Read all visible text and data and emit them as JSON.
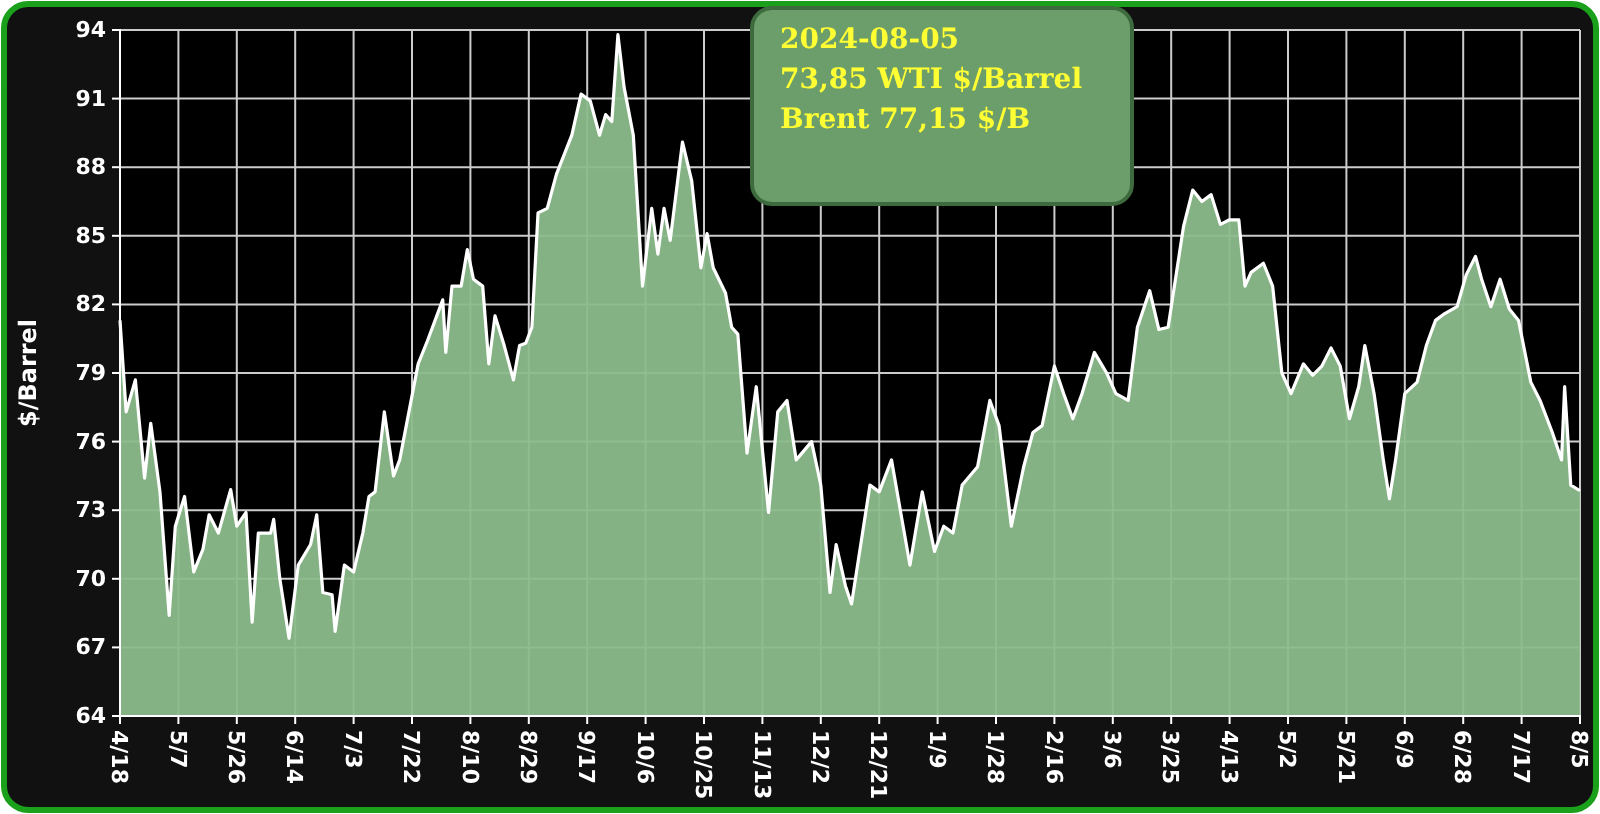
{
  "chart_data": {
    "type": "area",
    "ylabel": "$/Barrel",
    "annotations": [
      "2024-08-05",
      "73,85 WTI $/Barrel",
      "Brent 77,15 $/B"
    ],
    "xlim": [
      "2023-04-18",
      "2024-08-05"
    ],
    "xticks": [
      {
        "value": "2023-04-18",
        "label": "4/18"
      },
      {
        "value": "2023-05-07",
        "label": "5/7"
      },
      {
        "value": "2023-05-26",
        "label": "5/26"
      },
      {
        "value": "2023-06-14",
        "label": "6/14"
      },
      {
        "value": "2023-07-03",
        "label": "7/3"
      },
      {
        "value": "2023-07-22",
        "label": "7/22"
      },
      {
        "value": "2023-08-10",
        "label": "8/10"
      },
      {
        "value": "2023-08-29",
        "label": "8/29"
      },
      {
        "value": "2023-09-17",
        "label": "9/17"
      },
      {
        "value": "2023-10-06",
        "label": "10/6"
      },
      {
        "value": "2023-10-25",
        "label": "10/25"
      },
      {
        "value": "2023-11-13",
        "label": "11/13"
      },
      {
        "value": "2023-12-02",
        "label": "12/2"
      },
      {
        "value": "2023-12-21",
        "label": "12/21"
      },
      {
        "value": "2024-01-09",
        "label": "1/9"
      },
      {
        "value": "2024-01-28",
        "label": "1/28"
      },
      {
        "value": "2024-02-16",
        "label": "2/16"
      },
      {
        "value": "2024-03-06",
        "label": "3/6"
      },
      {
        "value": "2024-03-25",
        "label": "3/25"
      },
      {
        "value": "2024-04-13",
        "label": "4/13"
      },
      {
        "value": "2024-05-02",
        "label": "5/2"
      },
      {
        "value": "2024-05-21",
        "label": "5/21"
      },
      {
        "value": "2024-06-09",
        "label": "6/9"
      },
      {
        "value": "2024-06-28",
        "label": "6/28"
      },
      {
        "value": "2024-07-17",
        "label": "7/17"
      },
      {
        "value": "2024-08-05",
        "label": "8/5"
      }
    ],
    "ylim": [
      64,
      94
    ],
    "yticks": [
      64,
      67,
      70,
      73,
      76,
      79,
      82,
      85,
      88,
      91,
      94
    ],
    "grid": true,
    "x": [
      "2023-04-18",
      "2023-04-20",
      "2023-04-23",
      "2023-04-26",
      "2023-04-28",
      "2023-05-01",
      "2023-05-04",
      "2023-05-06",
      "2023-05-09",
      "2023-05-12",
      "2023-05-15",
      "2023-05-17",
      "2023-05-20",
      "2023-05-24",
      "2023-05-26",
      "2023-05-29",
      "2023-05-31",
      "2023-06-02",
      "2023-06-06",
      "2023-06-07",
      "2023-06-09",
      "2023-06-12",
      "2023-06-15",
      "2023-06-19",
      "2023-06-21",
      "2023-06-23",
      "2023-06-26",
      "2023-06-27",
      "2023-06-30",
      "2023-07-03",
      "2023-07-06",
      "2023-07-08",
      "2023-07-10",
      "2023-07-13",
      "2023-07-16",
      "2023-07-18",
      "2023-07-24",
      "2023-07-27",
      "2023-08-01",
      "2023-08-02",
      "2023-08-04",
      "2023-08-07",
      "2023-08-09",
      "2023-08-11",
      "2023-08-14",
      "2023-08-16",
      "2023-08-18",
      "2023-08-21",
      "2023-08-24",
      "2023-08-26",
      "2023-08-28",
      "2023-08-30",
      "2023-09-01",
      "2023-09-04",
      "2023-09-07",
      "2023-09-12",
      "2023-09-15",
      "2023-09-18",
      "2023-09-21",
      "2023-09-23",
      "2023-09-25",
      "2023-09-27",
      "2023-09-29",
      "2023-10-02",
      "2023-10-05",
      "2023-10-08",
      "2023-10-10",
      "2023-10-12",
      "2023-10-14",
      "2023-10-18",
      "2023-10-21",
      "2023-10-24",
      "2023-10-26",
      "2023-10-28",
      "2023-11-01",
      "2023-11-03",
      "2023-11-05",
      "2023-11-08",
      "2023-11-11",
      "2023-11-15",
      "2023-11-18",
      "2023-11-21",
      "2023-11-24",
      "2023-11-29",
      "2023-12-02",
      "2023-12-05",
      "2023-12-07",
      "2023-12-10",
      "2023-12-12",
      "2023-12-15",
      "2023-12-18",
      "2023-12-21",
      "2023-12-25",
      "2023-12-28",
      "2023-12-31",
      "2024-01-04",
      "2024-01-08",
      "2024-01-11",
      "2024-01-14",
      "2024-01-17",
      "2024-01-22",
      "2024-01-26",
      "2024-01-29",
      "2024-02-02",
      "2024-02-06",
      "2024-02-09",
      "2024-02-12",
      "2024-02-16",
      "2024-02-19",
      "2024-02-22",
      "2024-02-25",
      "2024-02-29",
      "2024-03-04",
      "2024-03-07",
      "2024-03-11",
      "2024-03-14",
      "2024-03-18",
      "2024-03-21",
      "2024-03-24",
      "2024-03-29",
      "2024-04-01",
      "2024-04-04",
      "2024-04-07",
      "2024-04-10",
      "2024-04-13",
      "2024-04-16",
      "2024-04-18",
      "2024-04-20",
      "2024-04-24",
      "2024-04-27",
      "2024-04-30",
      "2024-05-03",
      "2024-05-07",
      "2024-05-10",
      "2024-05-13",
      "2024-05-16",
      "2024-05-19",
      "2024-05-22",
      "2024-05-25",
      "2024-05-27",
      "2024-05-30",
      "2024-06-02",
      "2024-06-04",
      "2024-06-06",
      "2024-06-09",
      "2024-06-13",
      "2024-06-16",
      "2024-06-19",
      "2024-06-22",
      "2024-06-26",
      "2024-06-29",
      "2024-07-02",
      "2024-07-04",
      "2024-07-07",
      "2024-07-10",
      "2024-07-13",
      "2024-07-16",
      "2024-07-20",
      "2024-07-23",
      "2024-07-27",
      "2024-07-30",
      "2024-07-31",
      "2024-08-02",
      "2024-08-05"
    ],
    "series": [
      {
        "color": "#8cbc8c",
        "values": [
          81.3,
          77.3,
          78.7,
          74.4,
          76.8,
          73.8,
          68.4,
          72.3,
          73.6,
          70.3,
          71.3,
          72.8,
          72.0,
          73.9,
          72.3,
          72.9,
          68.1,
          72.0,
          72.0,
          72.6,
          70.0,
          67.4,
          70.6,
          71.5,
          72.8,
          69.4,
          69.3,
          67.7,
          70.6,
          70.3,
          72.0,
          73.6,
          73.8,
          77.3,
          74.5,
          75.2,
          79.4,
          80.4,
          82.2,
          79.9,
          82.8,
          82.8,
          84.4,
          83.1,
          82.8,
          79.4,
          81.5,
          80.2,
          78.7,
          80.2,
          80.3,
          81.0,
          86.0,
          86.2,
          87.7,
          89.4,
          91.2,
          90.9,
          89.4,
          90.3,
          90.0,
          93.8,
          91.5,
          89.4,
          82.8,
          86.2,
          84.2,
          86.2,
          84.8,
          89.1,
          87.4,
          83.6,
          85.1,
          83.6,
          82.5,
          81.0,
          80.7,
          75.5,
          78.4,
          72.9,
          77.3,
          77.8,
          75.2,
          76.0,
          74.1,
          69.4,
          71.5,
          69.7,
          68.9,
          71.5,
          74.1,
          73.8,
          75.2,
          72.9,
          70.6,
          73.8,
          71.2,
          72.3,
          72.0,
          74.1,
          74.9,
          77.8,
          76.7,
          72.3,
          74.9,
          76.4,
          76.7,
          79.3,
          78.1,
          77.0,
          78.1,
          79.9,
          79.0,
          78.1,
          77.8,
          81.0,
          82.6,
          80.9,
          81.0,
          85.4,
          87.0,
          86.5,
          86.8,
          85.5,
          85.7,
          85.7,
          82.8,
          83.4,
          83.8,
          82.8,
          79.0,
          78.1,
          79.4,
          78.9,
          79.3,
          80.1,
          79.3,
          77.0,
          78.4,
          80.2,
          78.1,
          75.2,
          73.5,
          75.2,
          78.1,
          78.6,
          80.2,
          81.3,
          81.6,
          81.9,
          83.3,
          84.1,
          83.1,
          81.9,
          83.1,
          81.8,
          81.3,
          78.6,
          77.8,
          76.4,
          75.2,
          78.4,
          74.1,
          73.85
        ]
      }
    ]
  }
}
